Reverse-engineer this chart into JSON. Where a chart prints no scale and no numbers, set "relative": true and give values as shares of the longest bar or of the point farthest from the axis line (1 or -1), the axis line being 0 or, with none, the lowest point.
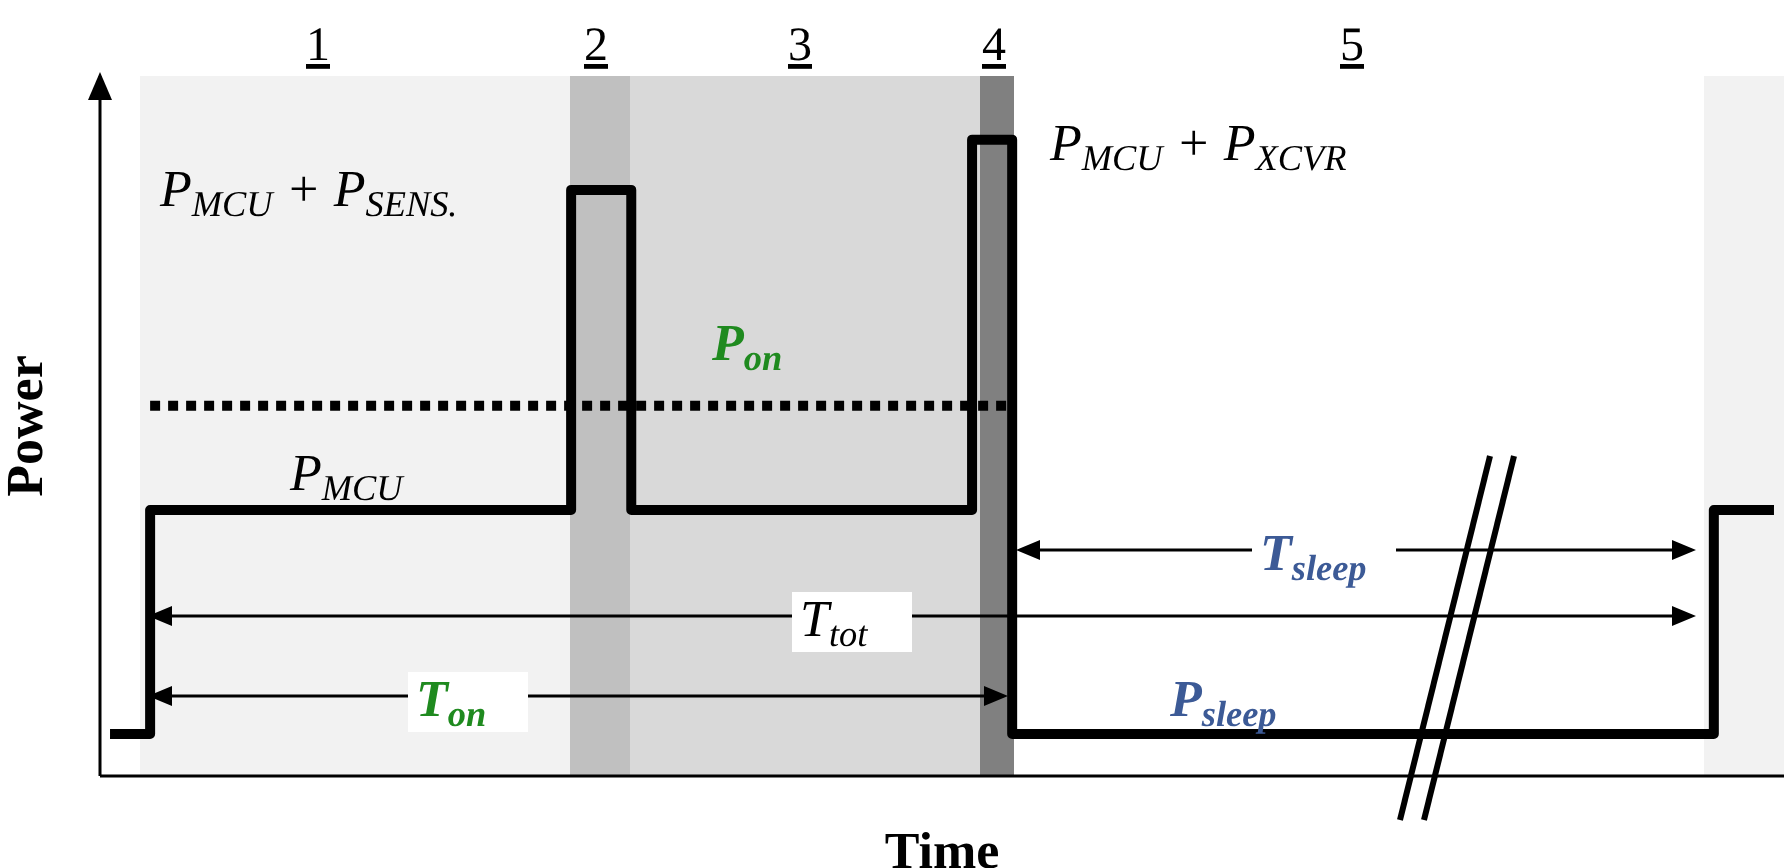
{
  "chart_data": {
    "type": "step",
    "relative": true,
    "xlabel": "Time",
    "ylabel": "Power",
    "marker": "none",
    "categories": [
      null,
      null,
      null,
      null,
      null,
      null,
      null,
      null,
      null,
      null,
      null,
      null,
      null,
      null,
      null,
      null,
      null,
      null,
      null,
      null,
      null,
      null,
      null,
      null,
      null,
      null,
      null,
      null,
      null,
      null,
      null,
      null,
      null,
      null,
      null,
      null,
      null,
      null,
      null,
      null,
      null,
      null,
      null,
      null,
      null,
      null,
      null,
      null,
      null,
      null,
      null,
      null,
      null,
      null,
      null,
      null,
      null,
      null,
      null,
      null,
      null,
      null,
      null,
      null,
      null,
      null,
      null,
      null,
      null,
      null,
      null,
      null,
      null,
      null,
      null,
      null,
      null,
      null,
      null,
      null,
      null,
      null,
      null,
      null
    ],
    "series": [
      {
        "type": "step",
        "color": "#000000",
        "line_style": "solid",
        "values": [
          0.066,
          0.066,
          0.418,
          0.418,
          0.418,
          0.418,
          0.418,
          0.418,
          0.418,
          0.418,
          0.418,
          0.418,
          0.418,
          0.418,
          0.418,
          0.418,
          0.418,
          0.418,
          0.418,
          0.418,
          0.418,
          0.418,
          0.418,
          0.921,
          0.921,
          0.921,
          0.418,
          0.418,
          0.418,
          0.418,
          0.418,
          0.418,
          0.418,
          0.418,
          0.418,
          0.418,
          0.418,
          0.418,
          0.418,
          0.418,
          0.418,
          0.418,
          0.418,
          1,
          1,
          0.066,
          0.066,
          0.066,
          0.066,
          0.066,
          0.066,
          0.066,
          0.066,
          0.066,
          0.066,
          0.066,
          0.066,
          0.066,
          0.066,
          0.066,
          0.066,
          0.066,
          0.066,
          0.066,
          0.066,
          0.066,
          0.066,
          0.066,
          0.066,
          0.066,
          0.066,
          0.066,
          0.066,
          0.066,
          0.066,
          0.066,
          0.066,
          0.066,
          0.066,
          0.066,
          0.418,
          0.418,
          0.418,
          0.418
        ]
      },
      {
        "type": "step",
        "color": "#000000",
        "line_style": "dotted",
        "values": [
          null,
          null,
          0.582,
          0.582,
          0.582,
          0.582,
          0.582,
          0.582,
          0.582,
          0.582,
          0.582,
          0.582,
          0.582,
          0.582,
          0.582,
          0.582,
          0.582,
          0.582,
          0.582,
          0.582,
          0.582,
          0.582,
          0.582,
          0.582,
          0.582,
          0.582,
          0.582,
          0.582,
          0.582,
          0.582,
          0.582,
          0.582,
          0.582,
          0.582,
          0.582,
          0.582,
          0.582,
          0.582,
          0.582,
          0.582,
          0.582,
          0.582,
          0.582,
          0.582,
          0.582,
          0.582,
          null,
          null,
          null,
          null,
          null,
          null,
          null,
          null,
          null,
          null,
          null,
          null,
          null,
          null,
          null,
          null,
          null,
          null,
          null,
          null,
          null,
          null,
          null,
          null,
          null,
          null,
          null,
          null,
          null,
          null,
          null,
          null,
          null,
          null,
          null,
          null,
          null,
          null
        ]
      }
    ],
    "annotations": [
      "P$_{MCU}$ + P$_{SENS.}$",
      "P$_{MCU}$ + P$_{XCVR}$",
      "P$_{on}$",
      "P$_{MCU}$",
      "T$_{tot}$",
      "T$_{on}$",
      "T$_{sleep}$",
      "P$_{sleep}$",
      "1",
      "2",
      "3",
      "4",
      "5"
    ]
  }
}
